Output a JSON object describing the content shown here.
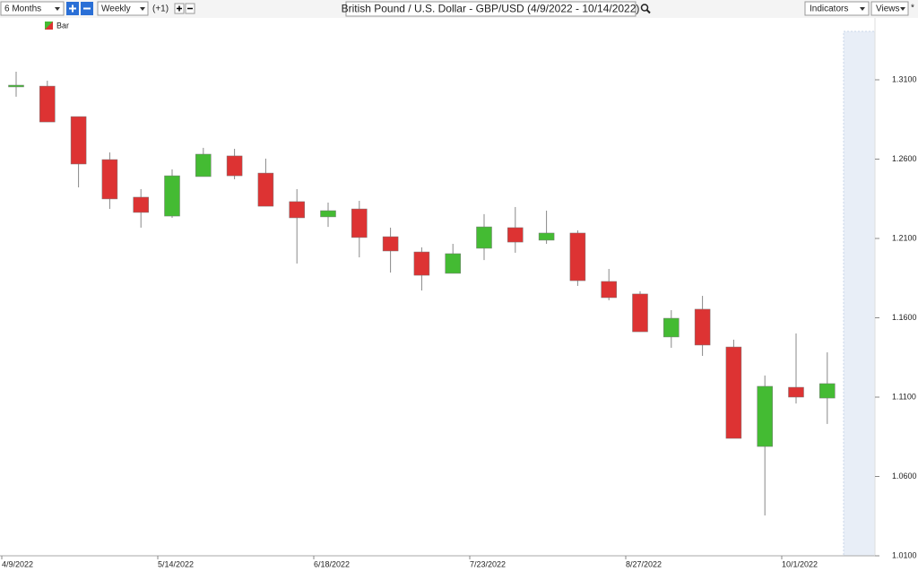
{
  "toolbar": {
    "period": "6 Months",
    "interval": "Weekly",
    "offset": "(+1)",
    "indicators": "Indicators",
    "views": "Views",
    "star": "*"
  },
  "chart_data": {
    "type": "candlestick",
    "title": "British Pound / U.S. Dollar - GBP/USD (4/9/2022 - 10/14/2022)",
    "legend": "Bar",
    "categories": [
      "4/9/2022",
      null,
      null,
      null,
      null,
      "5/14/2022",
      null,
      null,
      null,
      null,
      "6/18/2022",
      null,
      null,
      null,
      null,
      "7/23/2022",
      null,
      null,
      null,
      null,
      "8/27/2022",
      null,
      null,
      null,
      null,
      "10/1/2022",
      null
    ],
    "open": [
      1.3055,
      1.306,
      1.2868,
      1.2597,
      1.236,
      1.2241,
      1.249,
      1.262,
      1.2512,
      1.2332,
      1.2236,
      1.2286,
      1.2111,
      1.2015,
      1.188,
      1.2038,
      1.2168,
      1.2089,
      1.2134,
      1.1829,
      1.175,
      1.1479,
      1.1654,
      1.1416,
      1.0789,
      1.1162,
      1.1094
    ],
    "high": [
      1.3151,
      1.3094,
      1.2868,
      1.2642,
      1.2411,
      1.2535,
      1.2671,
      1.2665,
      1.2603,
      1.2411,
      1.2326,
      1.2337,
      1.2168,
      1.2044,
      1.2066,
      1.2253,
      1.2298,
      1.2275,
      1.2151,
      1.1908,
      1.1767,
      1.1648,
      1.1738,
      1.1462,
      1.1236,
      1.1501,
      1.1382
    ],
    "low": [
      1.2993,
      1.2834,
      1.2422,
      1.2286,
      1.2168,
      1.223,
      1.249,
      1.2473,
      1.2303,
      1.1942,
      1.2173,
      1.1981,
      1.1885,
      1.1772,
      1.188,
      1.1964,
      1.201,
      1.2066,
      1.1801,
      1.171,
      1.1512,
      1.1411,
      1.136,
      1.084,
      1.0354,
      1.106,
      1.0931
    ],
    "close": [
      1.3066,
      1.2834,
      1.2569,
      1.2349,
      1.2264,
      1.2495,
      1.2631,
      1.2495,
      1.2303,
      1.223,
      1.2275,
      1.2106,
      1.2021,
      1.1868,
      1.2004,
      1.2173,
      1.2077,
      1.2134,
      1.1834,
      1.1727,
      1.1512,
      1.1597,
      1.1428,
      1.084,
      1.1168,
      1.11,
      1.1185
    ],
    "up_color": "#44bb33",
    "down_color": "#dd3333",
    "ylim": [
      1.01,
      1.3405
    ],
    "yticks": [
      {
        "value": 1.01,
        "label": "1.0100"
      },
      {
        "value": 1.06,
        "label": "1.0600"
      },
      {
        "value": 1.11,
        "label": "1.1100"
      },
      {
        "value": 1.16,
        "label": "1.1600"
      },
      {
        "value": 1.21,
        "label": "1.2100"
      },
      {
        "value": 1.26,
        "label": "1.2600"
      },
      {
        "value": 1.31,
        "label": "1.3100"
      }
    ],
    "grid": false
  }
}
